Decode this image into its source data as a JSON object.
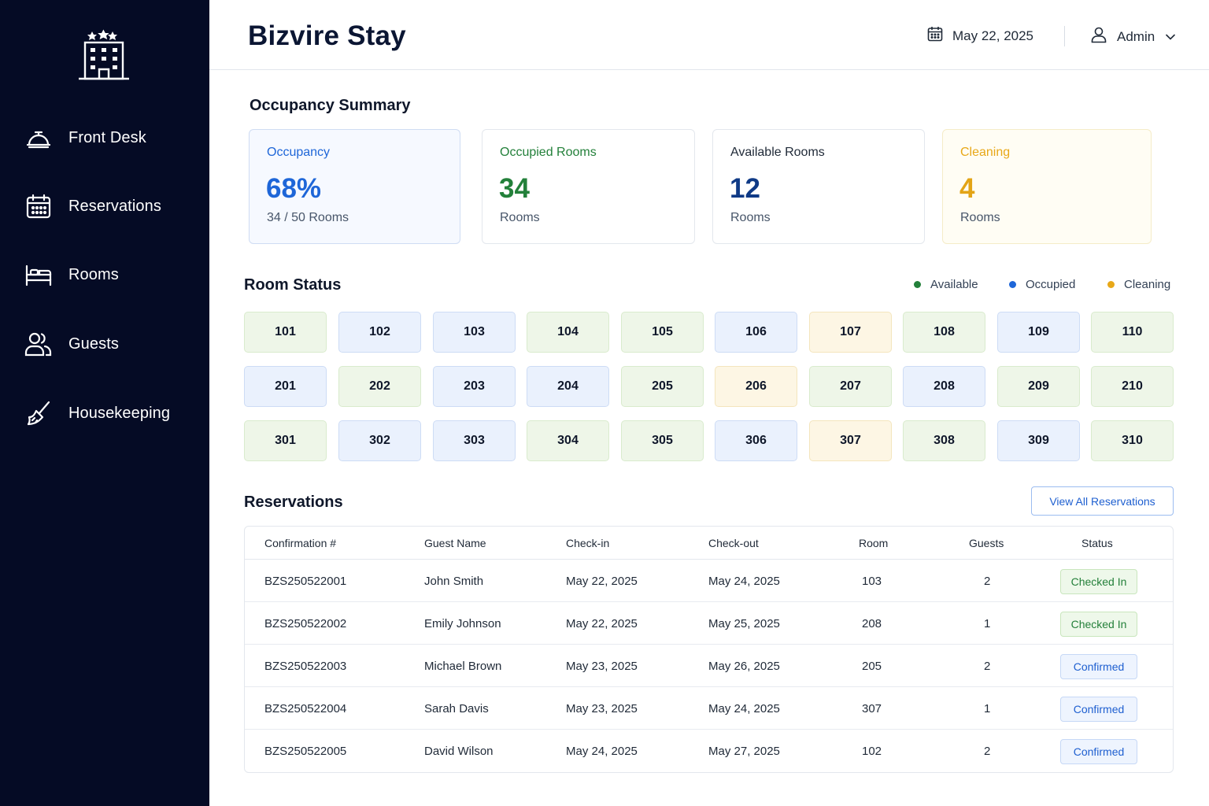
{
  "app": {
    "title": "Bizvire Stay"
  },
  "header": {
    "date": "May 22, 2025",
    "user": "Admin"
  },
  "sidebar": {
    "items": [
      {
        "label": "Front Desk",
        "icon": "bell-icon"
      },
      {
        "label": "Reservations",
        "icon": "calendar-icon"
      },
      {
        "label": "Rooms",
        "icon": "bed-icon"
      },
      {
        "label": "Guests",
        "icon": "users-icon"
      },
      {
        "label": "Housekeeping",
        "icon": "broom-icon"
      }
    ]
  },
  "summary": {
    "title": "Occupancy Summary",
    "cards": [
      {
        "label": "Occupancy",
        "value": "68%",
        "sub": "34 / 50 Rooms",
        "color": "#1e66d8"
      },
      {
        "label": "Occupied Rooms",
        "value": "34",
        "sub": "Rooms",
        "color": "#23803a"
      },
      {
        "label": "Available Rooms",
        "value": "12",
        "sub": "Rooms",
        "color": "#0f3a86"
      },
      {
        "label": "Cleaning",
        "value": "4",
        "sub": "Rooms",
        "color": "#e3a416"
      }
    ]
  },
  "room_status": {
    "title": "Room Status",
    "legend": [
      {
        "label": "Available",
        "color": "#23803a"
      },
      {
        "label": "Occupied",
        "color": "#1e66d8"
      },
      {
        "label": "Cleaning",
        "color": "#e8a818"
      }
    ],
    "rows": [
      [
        {
          "number": "101",
          "status": "available"
        },
        {
          "number": "102",
          "status": "occupied"
        },
        {
          "number": "103",
          "status": "occupied"
        },
        {
          "number": "104",
          "status": "available"
        },
        {
          "number": "105",
          "status": "available"
        },
        {
          "number": "106",
          "status": "occupied"
        },
        {
          "number": "107",
          "status": "cleaning"
        },
        {
          "number": "108",
          "status": "available"
        },
        {
          "number": "109",
          "status": "occupied"
        },
        {
          "number": "110",
          "status": "available"
        }
      ],
      [
        {
          "number": "201",
          "status": "occupied"
        },
        {
          "number": "202",
          "status": "available"
        },
        {
          "number": "203",
          "status": "occupied"
        },
        {
          "number": "204",
          "status": "occupied"
        },
        {
          "number": "205",
          "status": "available"
        },
        {
          "number": "206",
          "status": "cleaning"
        },
        {
          "number": "207",
          "status": "available"
        },
        {
          "number": "208",
          "status": "occupied"
        },
        {
          "number": "209",
          "status": "available"
        },
        {
          "number": "210",
          "status": "available"
        }
      ],
      [
        {
          "number": "301",
          "status": "available"
        },
        {
          "number": "302",
          "status": "occupied"
        },
        {
          "number": "303",
          "status": "occupied"
        },
        {
          "number": "304",
          "status": "available"
        },
        {
          "number": "305",
          "status": "available"
        },
        {
          "number": "306",
          "status": "occupied"
        },
        {
          "number": "307",
          "status": "cleaning"
        },
        {
          "number": "308",
          "status": "available"
        },
        {
          "number": "309",
          "status": "occupied"
        },
        {
          "number": "310",
          "status": "available"
        }
      ]
    ]
  },
  "reservations": {
    "title": "Reservations",
    "view_all_label": "View All Reservations",
    "columns": [
      "Confirmation #",
      "Guest Name",
      "Check-in",
      "Check-out",
      "Room",
      "Guests",
      "Status"
    ],
    "rows": [
      {
        "confirmation": "BZS250522001",
        "guest": "John Smith",
        "checkin": "May 22, 2025",
        "checkout": "May 24, 2025",
        "room": "103",
        "guests": "2",
        "status": "Checked In",
        "status_type": "in"
      },
      {
        "confirmation": "BZS250522002",
        "guest": "Emily Johnson",
        "checkin": "May 22, 2025",
        "checkout": "May 25, 2025",
        "room": "208",
        "guests": "1",
        "status": "Checked In",
        "status_type": "in"
      },
      {
        "confirmation": "BZS250522003",
        "guest": "Michael Brown",
        "checkin": "May 23, 2025",
        "checkout": "May 26, 2025",
        "room": "205",
        "guests": "2",
        "status": "Confirmed",
        "status_type": "conf"
      },
      {
        "confirmation": "BZS250522004",
        "guest": "Sarah Davis",
        "checkin": "May 23, 2025",
        "checkout": "May 24, 2025",
        "room": "307",
        "guests": "1",
        "status": "Confirmed",
        "status_type": "conf"
      },
      {
        "confirmation": "BZS250522005",
        "guest": "David Wilson",
        "checkin": "May 24, 2025",
        "checkout": "May 27, 2025",
        "room": "102",
        "guests": "2",
        "status": "Confirmed",
        "status_type": "conf"
      }
    ]
  }
}
